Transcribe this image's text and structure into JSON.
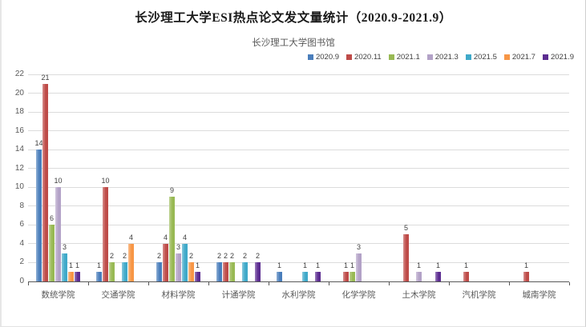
{
  "page": {
    "title": "长沙理工大学ESI热点论文发文量统计（2020.9-2021.9）",
    "subtitle": "长沙理工大学图书馆"
  },
  "chart_data": {
    "type": "bar",
    "title": "长沙理工大学ESI热点论文发文量统计（2020.9-2021.9）",
    "subtitle": "长沙理工大学图书馆",
    "categories": [
      "数统学院",
      "交通学院",
      "材料学院",
      "计通学院",
      "水利学院",
      "化学学院",
      "土木学院",
      "汽机学院",
      "城南学院"
    ],
    "series": [
      {
        "name": "2020.9",
        "color": "#4A7EBB",
        "values": [
          14,
          1,
          2,
          2,
          1,
          0,
          0,
          0,
          0
        ]
      },
      {
        "name": "2020.11",
        "color": "#BE4B48",
        "values": [
          21,
          10,
          4,
          2,
          0,
          1,
          5,
          1,
          1
        ]
      },
      {
        "name": "2021.1",
        "color": "#98B954",
        "values": [
          6,
          2,
          9,
          2,
          0,
          1,
          0,
          0,
          0
        ]
      },
      {
        "name": "2021.3",
        "color": "#B3A2C7",
        "values": [
          10,
          0,
          3,
          0,
          0,
          3,
          1,
          0,
          0
        ]
      },
      {
        "name": "2021.5",
        "color": "#3FA9C9",
        "values": [
          3,
          2,
          4,
          2,
          1,
          0,
          0,
          0,
          0
        ]
      },
      {
        "name": "2021.7",
        "color": "#F79646",
        "values": [
          1,
          4,
          2,
          0,
          0,
          0,
          0,
          0,
          0
        ]
      },
      {
        "name": "2021.9",
        "color": "#5C2D91",
        "values": [
          1,
          0,
          1,
          2,
          1,
          0,
          1,
          0,
          0
        ]
      }
    ],
    "ylim": [
      0,
      22
    ],
    "ytick_step": 2,
    "grid": true,
    "legend_position": "top-right",
    "value_labels": "shown above non-zero bars",
    "xlabel": "",
    "ylabel": ""
  }
}
